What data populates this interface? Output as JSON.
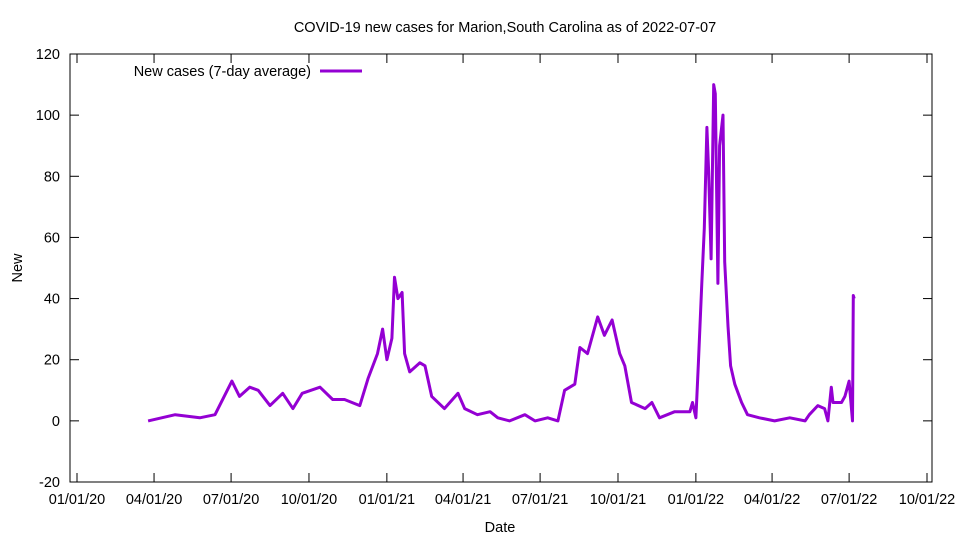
{
  "chart_data": {
    "type": "line",
    "title": "COVID-19 new cases for Marion,South Carolina as of 2022-07-07",
    "xlabel": "Date",
    "ylabel": "New",
    "ylim": [
      -20,
      120
    ],
    "yticks": [
      -20,
      0,
      20,
      40,
      60,
      80,
      100,
      120
    ],
    "xlim": [
      "2020-01-01",
      "2022-10-01"
    ],
    "xticks": [
      {
        "date": "2020-01-01",
        "label": "01/01/20"
      },
      {
        "date": "2020-04-01",
        "label": "04/01/20"
      },
      {
        "date": "2020-07-01",
        "label": "07/01/20"
      },
      {
        "date": "2020-10-01",
        "label": "10/01/20"
      },
      {
        "date": "2021-01-01",
        "label": "01/01/21"
      },
      {
        "date": "2021-04-01",
        "label": "04/01/21"
      },
      {
        "date": "2021-07-01",
        "label": "07/01/21"
      },
      {
        "date": "2021-10-01",
        "label": "10/01/21"
      },
      {
        "date": "2022-01-01",
        "label": "01/01/22"
      },
      {
        "date": "2022-04-01",
        "label": "04/01/22"
      },
      {
        "date": "2022-07-01",
        "label": "07/01/22"
      },
      {
        "date": "2022-10-01",
        "label": "10/01/22"
      }
    ],
    "legend": {
      "position": "top-left"
    },
    "grid": false,
    "series": [
      {
        "name": "New cases (7-day average)",
        "color": "#9400d3",
        "points": [
          [
            "2020-03-25",
            0
          ],
          [
            "2020-04-26",
            2
          ],
          [
            "2020-05-25",
            1
          ],
          [
            "2020-06-12",
            2
          ],
          [
            "2020-07-02",
            13
          ],
          [
            "2020-07-11",
            8
          ],
          [
            "2020-07-23",
            11
          ],
          [
            "2020-08-02",
            10
          ],
          [
            "2020-08-16",
            5
          ],
          [
            "2020-08-31",
            9
          ],
          [
            "2020-09-12",
            4
          ],
          [
            "2020-09-23",
            9
          ],
          [
            "2020-10-14",
            11
          ],
          [
            "2020-10-29",
            7
          ],
          [
            "2020-11-12",
            7
          ],
          [
            "2020-11-30",
            5
          ],
          [
            "2020-12-10",
            14
          ],
          [
            "2020-12-21",
            22
          ],
          [
            "2020-12-27",
            30
          ],
          [
            "2021-01-01",
            20
          ],
          [
            "2021-01-07",
            27
          ],
          [
            "2021-01-10",
            47
          ],
          [
            "2021-01-14",
            40
          ],
          [
            "2021-01-19",
            42
          ],
          [
            "2021-01-22",
            22
          ],
          [
            "2021-01-28",
            16
          ],
          [
            "2021-02-09",
            19
          ],
          [
            "2021-02-15",
            18
          ],
          [
            "2021-02-23",
            8
          ],
          [
            "2021-03-10",
            4
          ],
          [
            "2021-03-26",
            9
          ],
          [
            "2021-04-03",
            4
          ],
          [
            "2021-04-18",
            2
          ],
          [
            "2021-05-03",
            3
          ],
          [
            "2021-05-12",
            1
          ],
          [
            "2021-05-26",
            0
          ],
          [
            "2021-06-13",
            2
          ],
          [
            "2021-06-25",
            0
          ],
          [
            "2021-07-10",
            1
          ],
          [
            "2021-07-22",
            0
          ],
          [
            "2021-07-30",
            10
          ],
          [
            "2021-08-11",
            12
          ],
          [
            "2021-08-17",
            24
          ],
          [
            "2021-08-26",
            22
          ],
          [
            "2021-09-07",
            34
          ],
          [
            "2021-09-15",
            28
          ],
          [
            "2021-09-24",
            33
          ],
          [
            "2021-10-03",
            22
          ],
          [
            "2021-10-09",
            18
          ],
          [
            "2021-10-17",
            6
          ],
          [
            "2021-11-02",
            4
          ],
          [
            "2021-11-10",
            6
          ],
          [
            "2021-11-19",
            1
          ],
          [
            "2021-12-07",
            3
          ],
          [
            "2021-12-25",
            3
          ],
          [
            "2021-12-28",
            6
          ],
          [
            "2022-01-01",
            1
          ],
          [
            "2022-01-04",
            19
          ],
          [
            "2022-01-08",
            45
          ],
          [
            "2022-01-11",
            63
          ],
          [
            "2022-01-14",
            96
          ],
          [
            "2022-01-16",
            82
          ],
          [
            "2022-01-19",
            53
          ],
          [
            "2022-01-22",
            110
          ],
          [
            "2022-01-24",
            107
          ],
          [
            "2022-01-27",
            45
          ],
          [
            "2022-01-29",
            90
          ],
          [
            "2022-02-02",
            100
          ],
          [
            "2022-02-04",
            52
          ],
          [
            "2022-02-08",
            31
          ],
          [
            "2022-02-11",
            18
          ],
          [
            "2022-02-16",
            12
          ],
          [
            "2022-02-24",
            6
          ],
          [
            "2022-03-03",
            2
          ],
          [
            "2022-03-17",
            1
          ],
          [
            "2022-04-04",
            0
          ],
          [
            "2022-04-22",
            1
          ],
          [
            "2022-05-10",
            0
          ],
          [
            "2022-05-15",
            2
          ],
          [
            "2022-05-25",
            5
          ],
          [
            "2022-06-02",
            4
          ],
          [
            "2022-06-06",
            0
          ],
          [
            "2022-06-10",
            11
          ],
          [
            "2022-06-12",
            6
          ],
          [
            "2022-06-22",
            6
          ],
          [
            "2022-06-26",
            8
          ],
          [
            "2022-07-01",
            13
          ],
          [
            "2022-07-05",
            0
          ],
          [
            "2022-07-06",
            41
          ],
          [
            "2022-07-07",
            40
          ]
        ]
      }
    ]
  }
}
